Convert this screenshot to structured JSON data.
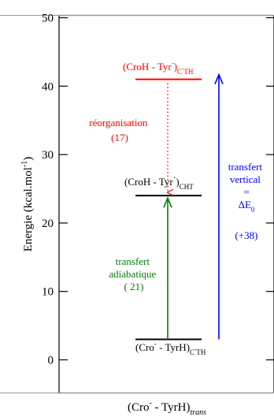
{
  "chart_data": {
    "type": "diagram",
    "ylabel_main": "Energie (kcal.mol",
    "ylabel_sup": "-1",
    "ylabel_end": ")",
    "ylim": [
      0,
      50
    ],
    "yticks": [
      {
        "value": 0,
        "label": "0"
      },
      {
        "value": 10,
        "label": "10"
      },
      {
        "value": 20,
        "label": "20"
      },
      {
        "value": 30,
        "label": "30"
      },
      {
        "value": 40,
        "label": "40"
      },
      {
        "value": 50,
        "label": "50"
      }
    ],
    "xlabel": {
      "main": "(Cro",
      "sup": "-",
      "mid": " - TyrH)",
      "sub": "trans"
    },
    "levels": [
      {
        "energy": 3,
        "color": "#000000",
        "label": {
          "p1": "(Cro",
          "s1": "-",
          "p2": " - TyrH)",
          "sub": "C",
          "sub2_sup": "-",
          "sub2": "TH"
        }
      },
      {
        "energy": 24,
        "color": "#000000",
        "label": {
          "p1": "(CroH - Tyr",
          "s1": "·",
          "p2": ")",
          "sub": "CHT"
        }
      },
      {
        "energy": 41,
        "color": "#ff0000",
        "label": {
          "p1": "(CroH - Tyr",
          "s1": "-",
          "p2": ")",
          "sub": "C",
          "sub2_sup": "-",
          "sub2": "TH"
        }
      }
    ],
    "arrows": [
      {
        "name": "reorganisation",
        "from": 41,
        "to": 24,
        "color": "#ff0000",
        "style": "dotted",
        "text": [
          "réorganisation",
          "(17)"
        ]
      },
      {
        "name": "adiabatique",
        "from": 3,
        "to": 24,
        "color": "#008000",
        "style": "solid",
        "text": [
          "transfert",
          "adiabatique",
          "( 21)"
        ]
      },
      {
        "name": "vertical",
        "from": 3,
        "to": 41,
        "color": "#0000ff",
        "style": "solid",
        "text": [
          "transfert",
          "vertical",
          "=",
          "ΔE",
          "0",
          "(+38)"
        ]
      }
    ]
  }
}
